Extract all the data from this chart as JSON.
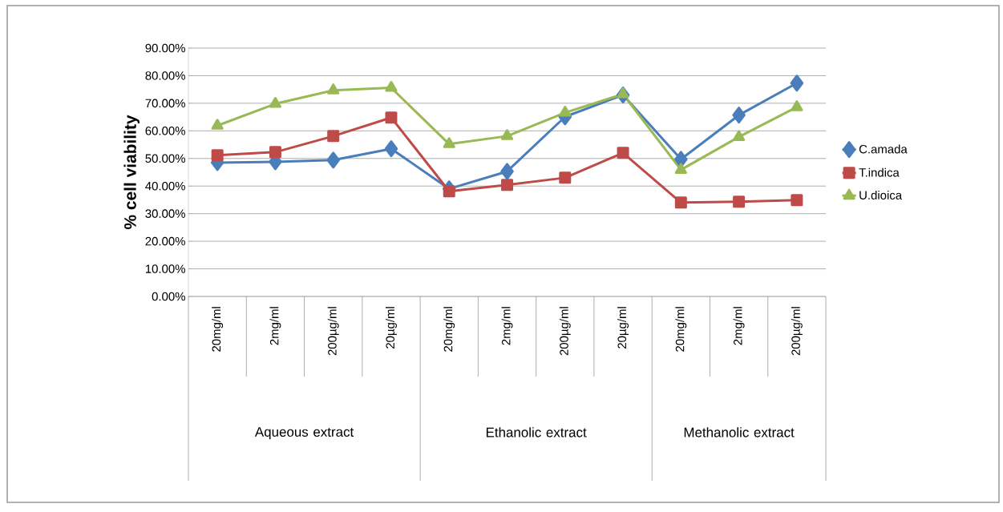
{
  "chart_data": {
    "type": "line",
    "ylabel": "% cell viability",
    "categories": [
      "20mg/ml",
      "2mg/ml",
      "200µg/ml",
      "20µg/ml",
      "20mg/ml",
      "2mg/ml",
      "200µg/ml",
      "20µg/ml",
      "20mg/ml",
      "2mg/ml",
      "200µg/ml"
    ],
    "annotations": [
      "Aqueous extract",
      "Ethanolic extract",
      "Methanolic extract"
    ],
    "series": [
      {
        "name": "C.amada",
        "color": "#4a7ebb",
        "marker": "diamond",
        "values": [
          48.5,
          48.8,
          49.4,
          53.5,
          39,
          45.3,
          65.1,
          73,
          49.7,
          65.7,
          77.3
        ]
      },
      {
        "name": "T.indica",
        "color": "#be4b48",
        "marker": "square",
        "values": [
          51.2,
          52.3,
          58.1,
          64.8,
          38.1,
          40.4,
          43,
          52,
          34,
          34.3,
          34.9
        ]
      },
      {
        "name": "U.dioica",
        "color": "#98b954",
        "marker": "triangle",
        "values": [
          61.9,
          69.8,
          74.7,
          75.6,
          55.2,
          58.1,
          66.6,
          73.3,
          45.9,
          57.8,
          68.6
        ]
      }
    ],
    "ylim": [
      0,
      90
    ],
    "yticks": [
      {
        "value": 0,
        "label": "0.00%"
      },
      {
        "value": 10,
        "label": "10.00%"
      },
      {
        "value": 20,
        "label": "20.00%"
      },
      {
        "value": 30,
        "label": "30.00%"
      },
      {
        "value": 40,
        "label": "40.00%"
      },
      {
        "value": 50,
        "label": "50.00%"
      },
      {
        "value": 60,
        "label": "60.00%"
      },
      {
        "value": 70,
        "label": "70.00%"
      },
      {
        "value": 80,
        "label": "80.00%"
      },
      {
        "value": 90,
        "label": "90.00%"
      }
    ],
    "grid": "y",
    "legend": "right"
  }
}
